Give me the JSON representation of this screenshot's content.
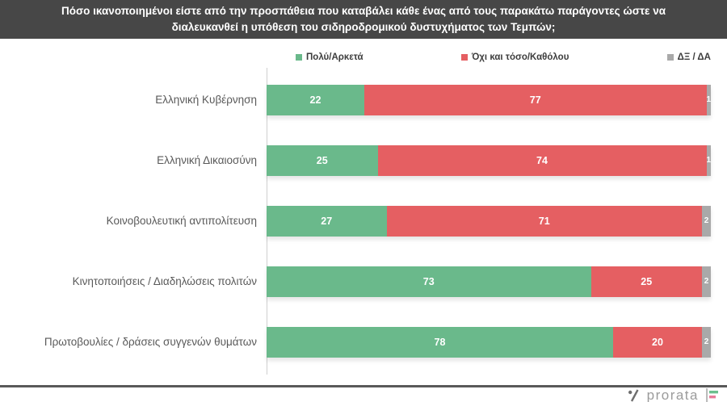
{
  "title": "Πόσο ικανοποιημένοι είστε από την προσπάθεια που καταβάλει κάθε ένας από τους παρακάτω παράγοντες ώστε να διαλευκανθεί η υπόθεση του σιδηροδρομικού δυστυχήματος των Τεμπών;",
  "colors": {
    "title_bg": "#474747",
    "green": "#6ab98b",
    "red": "#e55f62",
    "gray": "#a9a9a9",
    "axis": "#cfcfcf",
    "divider": "#595959",
    "label_text": "#595959",
    "logo_text": "#9b9b9b",
    "logo_flag_green": "#6cbf8e",
    "logo_flag_pink": "#e87b9a"
  },
  "footer": {
    "logo_text": "prorata"
  },
  "chart_data": {
    "type": "bar",
    "orientation": "horizontal-stacked",
    "title": "Πόσο ικανοποιημένοι είστε από την προσπάθεια που καταβάλει κάθε ένας από τους παρακάτω παράγοντες ώστε να διαλευκανθεί η υπόθεση του σιδηροδρομικού δυστυχήματος των Τεμπών;",
    "categories": [
      "Ελληνική Κυβέρνηση",
      "Ελληνική Δικαιοσύνη",
      "Κοινοβουλευτική αντιπολίτευση",
      "Κινητοποιήσεις / Διαδηλώσεις πολιτών",
      "Πρωτοβουλίες / δράσεις συγγενών θυμάτων"
    ],
    "series": [
      {
        "name": "Πολύ/Αρκετά",
        "color": "#6ab98b",
        "values": [
          22,
          25,
          27,
          73,
          78
        ]
      },
      {
        "name": "Όχι και τόσο/Καθόλου",
        "color": "#e55f62",
        "values": [
          77,
          74,
          71,
          25,
          20
        ]
      },
      {
        "name": "ΔΞ / ΔΑ",
        "color": "#a9a9a9",
        "values": [
          1,
          1,
          2,
          2,
          2
        ]
      }
    ],
    "xlim": [
      0,
      100
    ],
    "value_labels": "inside-white",
    "legend_position": "top",
    "grid": false
  }
}
